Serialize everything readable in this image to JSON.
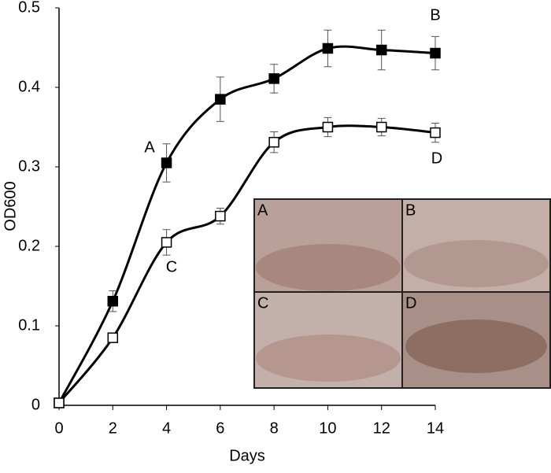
{
  "chart_data": {
    "type": "line",
    "x_label": "Days",
    "y_label": "OD600",
    "x": [
      0,
      2,
      4,
      6,
      8,
      10,
      12,
      14
    ],
    "series": [
      {
        "name": "B",
        "color": "#000000",
        "marker": "filled-square",
        "values": [
          0.003,
          0.131,
          0.305,
          0.385,
          0.411,
          0.449,
          0.447,
          0.443
        ],
        "errors": [
          0,
          0.013,
          0.024,
          0.028,
          0.018,
          0.023,
          0.025,
          0.021
        ]
      },
      {
        "name": "D",
        "color": "#000000",
        "marker": "open-square",
        "values": [
          0.003,
          0.085,
          0.205,
          0.238,
          0.331,
          0.35,
          0.35,
          0.343
        ],
        "errors": [
          0,
          0.004,
          0.016,
          0.01,
          0.013,
          0.012,
          0.011,
          0.012
        ]
      }
    ],
    "annotations": [
      "A",
      "B",
      "C",
      "D"
    ],
    "inset_labels": [
      "A",
      "B",
      "C",
      "D"
    ],
    "xlim": [
      0,
      14
    ],
    "xticks": [
      0,
      2,
      4,
      6,
      8,
      10,
      12,
      14
    ],
    "ylim": [
      0,
      0.5
    ],
    "yticks": [
      0,
      0.1,
      0.2,
      0.3,
      0.4,
      0.5
    ],
    "grid": false
  }
}
